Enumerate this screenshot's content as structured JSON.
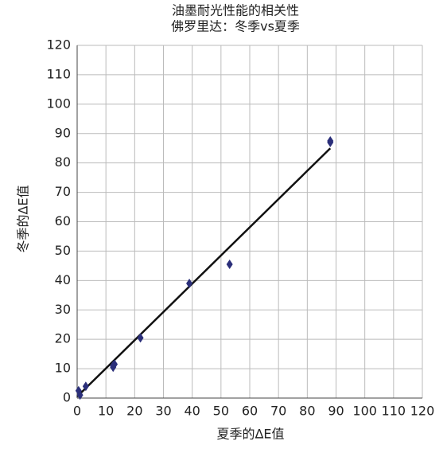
{
  "chart_data": {
    "type": "scatter",
    "title": [
      "油墨耐光性能的相关性",
      "佛罗里达：冬季vs夏季"
    ],
    "x_label": "夏季的ΔE值",
    "y_label": "冬季的ΔE值",
    "x": [
      0.5,
      1,
      3,
      12.5,
      13,
      12.5,
      22,
      39,
      53,
      88,
      88
    ],
    "values": [
      2.5,
      1,
      4,
      10.5,
      11.5,
      11,
      20.5,
      39,
      45.5,
      87.5,
      87
    ],
    "color": "#2b2f7a",
    "trendline": {
      "x": [
        0,
        88
      ],
      "y": [
        0.5,
        85
      ],
      "color": "#111111"
    },
    "xlim": [
      0,
      120
    ],
    "ylim": [
      0,
      120
    ],
    "xticks": [
      0,
      10,
      20,
      30,
      40,
      50,
      60,
      70,
      80,
      90,
      100,
      110,
      120
    ],
    "yticks": [
      0,
      10,
      20,
      30,
      40,
      50,
      60,
      70,
      80,
      90,
      100,
      110,
      120
    ],
    "grid": true
  }
}
